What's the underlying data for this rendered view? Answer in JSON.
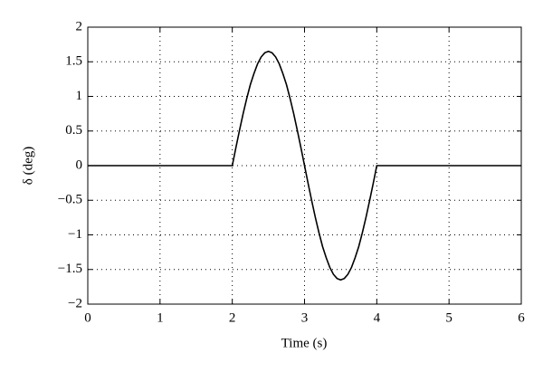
{
  "chart_data": {
    "type": "line",
    "xlabel": "Time (s)",
    "ylabel": "δ (deg)",
    "x": [
      0,
      2,
      2.05,
      2.1,
      2.15,
      2.2,
      2.25,
      2.3,
      2.35,
      2.4,
      2.45,
      2.5,
      2.55,
      2.6,
      2.65,
      2.7,
      2.75,
      2.8,
      2.85,
      2.9,
      2.95,
      3,
      3.05,
      3.1,
      3.15,
      3.2,
      3.25,
      3.3,
      3.35,
      3.4,
      3.45,
      3.5,
      3.55,
      3.6,
      3.65,
      3.7,
      3.75,
      3.8,
      3.85,
      3.9,
      3.95,
      4,
      6
    ],
    "series": [
      {
        "color": "#000000",
        "values": [
          0,
          0,
          0.26,
          0.51,
          0.75,
          0.97,
          1.17,
          1.33,
          1.47,
          1.57,
          1.63,
          1.65,
          1.63,
          1.57,
          1.47,
          1.33,
          1.17,
          0.97,
          0.75,
          0.51,
          0.26,
          0,
          -0.26,
          -0.51,
          -0.75,
          -0.97,
          -1.17,
          -1.33,
          -1.47,
          -1.57,
          -1.63,
          -1.65,
          -1.63,
          -1.57,
          -1.47,
          -1.33,
          -1.17,
          -0.97,
          -0.75,
          -0.51,
          -0.26,
          0,
          0
        ]
      }
    ],
    "xlim": [
      0,
      6
    ],
    "xticks": [
      0,
      1,
      2,
      3,
      4,
      5,
      6
    ],
    "ylim": [
      -2,
      2
    ],
    "yticks": [
      {
        "value": -2,
        "label": "−2"
      },
      {
        "value": -1.5,
        "label": "−1.5"
      },
      {
        "value": -1,
        "label": "−1"
      },
      {
        "value": -0.5,
        "label": "−0.5"
      },
      0,
      0.5,
      1,
      1.5,
      2
    ],
    "grid": true
  }
}
